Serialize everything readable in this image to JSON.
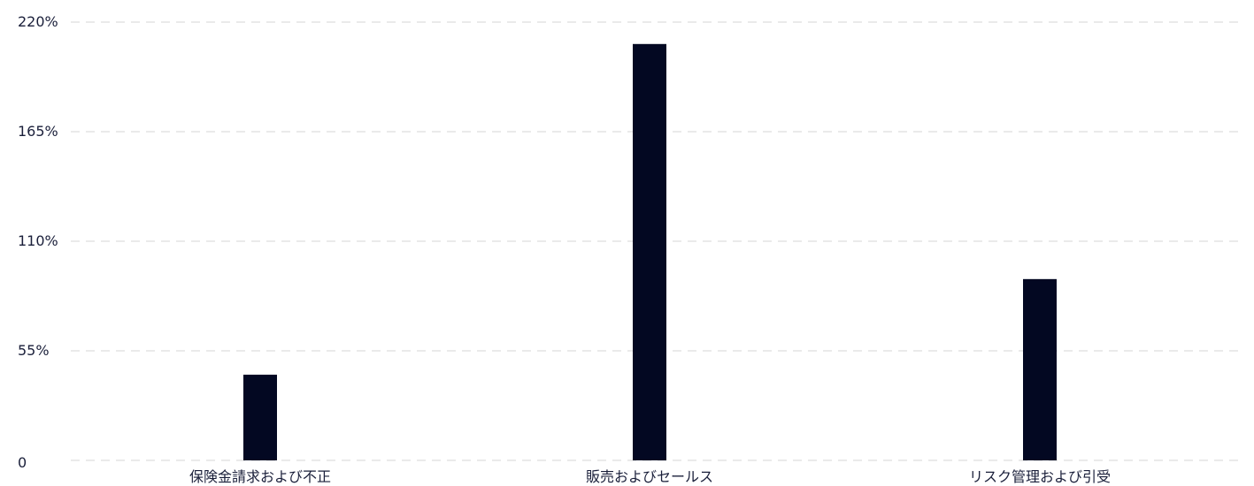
{
  "chart_data": {
    "type": "bar",
    "categories": [
      "保険金請求および不正",
      "販売およびセールス",
      "リスク管理および引受"
    ],
    "values": [
      43,
      209,
      91
    ],
    "y_ticks": [
      {
        "value": 0,
        "label": "0"
      },
      {
        "value": 55,
        "label": "55%"
      },
      {
        "value": 110,
        "label": "110%"
      },
      {
        "value": 165,
        "label": "165%"
      },
      {
        "value": 220,
        "label": "220%"
      }
    ],
    "ylim": [
      0,
      220
    ],
    "grid": true,
    "bar_color": "#030822",
    "grid_color": "#d4d4d4",
    "text_color": "#1a1f3a"
  }
}
